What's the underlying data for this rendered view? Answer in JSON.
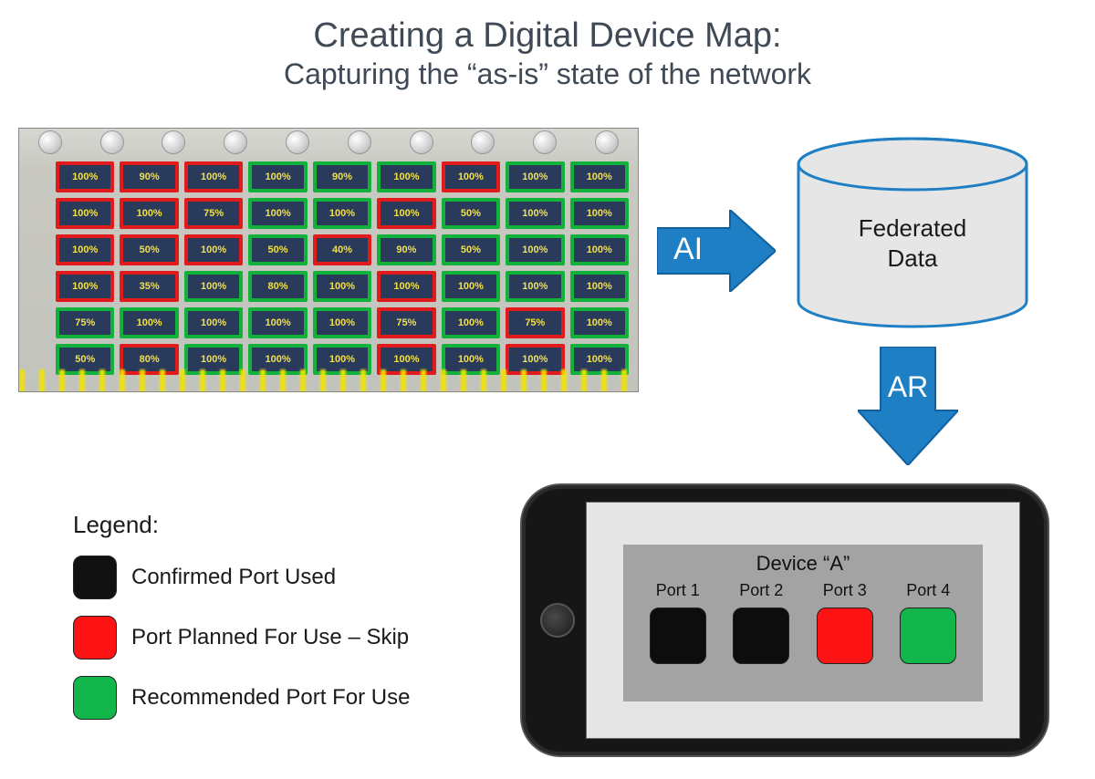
{
  "title": {
    "main": "Creating a Digital Device Map:",
    "sub": "Capturing the “as-is” state of the network",
    "color": "#3f4a56",
    "main_fontsize": 38,
    "sub_fontsize": 32
  },
  "colors": {
    "arrow_fill": "#1f7fc4",
    "arrow_stroke": "#1f7fc4",
    "db_fill": "#e6e6e6",
    "db_stroke": "#1f7fc4",
    "cable_yellow": "#f2e400",
    "port_bg": "#2a3a5a",
    "port_text": "#f2e04a",
    "border_red": "#e11b1b",
    "border_green": "#12b23a",
    "legend_black": "#111111",
    "legend_red": "#fd1313",
    "legend_green": "#12b64a",
    "phone_screen": "#e5e5e5",
    "device_card": "#a3a3a3"
  },
  "panel": {
    "cols": 9,
    "rows": 6,
    "knobs": 10,
    "cells": [
      {
        "pct": "100%",
        "c": "red"
      },
      {
        "pct": "90%",
        "c": "red"
      },
      {
        "pct": "100%",
        "c": "red"
      },
      {
        "pct": "100%",
        "c": "green"
      },
      {
        "pct": "90%",
        "c": "green"
      },
      {
        "pct": "100%",
        "c": "green"
      },
      {
        "pct": "100%",
        "c": "red"
      },
      {
        "pct": "100%",
        "c": "green"
      },
      {
        "pct": "100%",
        "c": "green"
      },
      {
        "pct": "100%",
        "c": "red"
      },
      {
        "pct": "100%",
        "c": "red"
      },
      {
        "pct": "75%",
        "c": "red"
      },
      {
        "pct": "100%",
        "c": "green"
      },
      {
        "pct": "100%",
        "c": "green"
      },
      {
        "pct": "100%",
        "c": "red"
      },
      {
        "pct": "50%",
        "c": "green"
      },
      {
        "pct": "100%",
        "c": "green"
      },
      {
        "pct": "100%",
        "c": "green"
      },
      {
        "pct": "100%",
        "c": "red"
      },
      {
        "pct": "50%",
        "c": "red"
      },
      {
        "pct": "100%",
        "c": "red"
      },
      {
        "pct": "50%",
        "c": "green"
      },
      {
        "pct": "40%",
        "c": "red"
      },
      {
        "pct": "90%",
        "c": "green"
      },
      {
        "pct": "50%",
        "c": "green"
      },
      {
        "pct": "100%",
        "c": "green"
      },
      {
        "pct": "100%",
        "c": "green"
      },
      {
        "pct": "100%",
        "c": "red"
      },
      {
        "pct": "35%",
        "c": "red"
      },
      {
        "pct": "100%",
        "c": "green"
      },
      {
        "pct": "80%",
        "c": "green"
      },
      {
        "pct": "100%",
        "c": "green"
      },
      {
        "pct": "100%",
        "c": "red"
      },
      {
        "pct": "100%",
        "c": "green"
      },
      {
        "pct": "100%",
        "c": "green"
      },
      {
        "pct": "100%",
        "c": "green"
      },
      {
        "pct": "75%",
        "c": "green"
      },
      {
        "pct": "100%",
        "c": "green"
      },
      {
        "pct": "100%",
        "c": "green"
      },
      {
        "pct": "100%",
        "c": "green"
      },
      {
        "pct": "100%",
        "c": "green"
      },
      {
        "pct": "75%",
        "c": "red"
      },
      {
        "pct": "100%",
        "c": "green"
      },
      {
        "pct": "75%",
        "c": "red"
      },
      {
        "pct": "100%",
        "c": "green"
      },
      {
        "pct": "50%",
        "c": "green"
      },
      {
        "pct": "80%",
        "c": "red"
      },
      {
        "pct": "100%",
        "c": "green"
      },
      {
        "pct": "100%",
        "c": "green"
      },
      {
        "pct": "100%",
        "c": "green"
      },
      {
        "pct": "100%",
        "c": "red"
      },
      {
        "pct": "100%",
        "c": "green"
      },
      {
        "pct": "100%",
        "c": "red"
      },
      {
        "pct": "100%",
        "c": "green"
      }
    ]
  },
  "arrows": {
    "ai_label": "AI",
    "ar_label": "AR",
    "label_fontsize": 34
  },
  "database": {
    "line1": "Federated",
    "line2": "Data",
    "fontsize": 26
  },
  "legend": {
    "title": "Legend:",
    "items": [
      {
        "color": "#111111",
        "label": "Confirmed Port Used"
      },
      {
        "color": "#fd1313",
        "label": "Port Planned For Use – Skip"
      },
      {
        "color": "#12b64a",
        "label": "Recommended Port For Use"
      }
    ],
    "fontsize": 24
  },
  "phone": {
    "device_title": "Device “A”",
    "ports": [
      {
        "label": "Port 1",
        "color": "#0d0d0d"
      },
      {
        "label": "Port 2",
        "color": "#0d0d0d"
      },
      {
        "label": "Port 3",
        "color": "#fd1313"
      },
      {
        "label": "Port 4",
        "color": "#12b64a"
      }
    ],
    "title_fontsize": 22,
    "port_label_fontsize": 18
  }
}
